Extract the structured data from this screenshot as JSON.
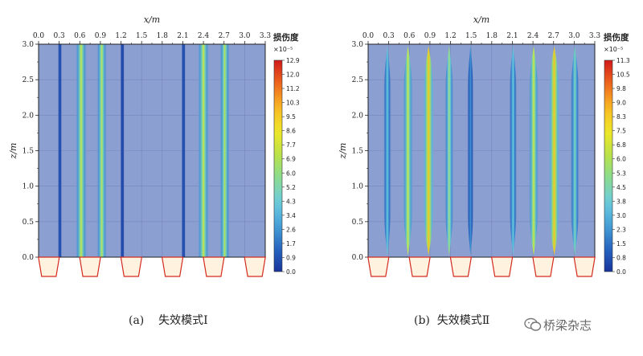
{
  "chart_data": [
    {
      "type": "heatmap",
      "panel_label": "(a)",
      "caption": "失效模式Ⅰ",
      "xlabel": "x/m",
      "ylabel": "z/m",
      "xlim": [
        0.0,
        3.3
      ],
      "ylim": [
        0.0,
        3.0
      ],
      "x_ticks": [
        "0.0",
        "0.3",
        "0.6",
        "0.9",
        "1.2",
        "1.5",
        "1.8",
        "2.1",
        "2.4",
        "2.7",
        "3.0",
        "3.3"
      ],
      "y_ticks": [
        "0.0",
        "0.5",
        "1.0",
        "1.5",
        "2.0",
        "2.5",
        "3.0"
      ],
      "grid": true,
      "colorbar": {
        "title": "损伤度",
        "unit": "×10⁻⁵",
        "min": 0.0,
        "max": 12.9,
        "ticks": [
          "12.9",
          "12.0",
          "11.2",
          "10.3",
          "9.5",
          "8.6",
          "7.7",
          "6.9",
          "6.0",
          "5.2",
          "4.3",
          "3.4",
          "2.6",
          "1.7",
          "0.9",
          "0.0"
        ]
      },
      "background_value": 0.5,
      "bands": [
        {
          "x": 0.31,
          "value": 1.2,
          "width": 0.03,
          "taper": false
        },
        {
          "x": 0.62,
          "value": 7.5,
          "width": 0.09,
          "taper": false
        },
        {
          "x": 0.92,
          "value": 7.2,
          "width": 0.08,
          "taper": false
        },
        {
          "x": 1.22,
          "value": 0.9,
          "width": 0.03,
          "taper": false
        },
        {
          "x": 2.11,
          "value": 1.1,
          "width": 0.03,
          "taper": false
        },
        {
          "x": 2.4,
          "value": 7.6,
          "width": 0.09,
          "taper": false
        },
        {
          "x": 2.71,
          "value": 7.1,
          "width": 0.08,
          "taper": false
        }
      ],
      "supports_x": [
        0.15,
        0.75,
        1.35,
        1.95,
        2.55,
        3.15
      ]
    },
    {
      "type": "heatmap",
      "panel_label": "(b)",
      "caption": "失效模式Ⅱ",
      "xlabel": "x/m",
      "ylabel": "z/m",
      "xlim": [
        0.0,
        3.3
      ],
      "ylim": [
        0.0,
        3.0
      ],
      "x_ticks": [
        "0.0",
        "0.3",
        "0.6",
        "0.9",
        "1.2",
        "1.5",
        "1.8",
        "2.1",
        "2.4",
        "2.7",
        "3.0",
        "3.3"
      ],
      "y_ticks": [
        "0.0",
        "0.5",
        "1.0",
        "1.5",
        "2.0",
        "2.5",
        "3.0"
      ],
      "grid": true,
      "colorbar": {
        "title": "损伤度",
        "unit": "×10⁻⁵",
        "min": 0.0,
        "max": 11.3,
        "ticks": [
          "11.3",
          "10.5",
          "9.8",
          "9.0",
          "8.3",
          "7.5",
          "6.8",
          "6.0",
          "5.3",
          "4.5",
          "3.8",
          "3.0",
          "2.3",
          "1.5",
          "0.8",
          "0.0"
        ]
      },
      "background_value": 0.5,
      "bands": [
        {
          "x": 0.28,
          "value": 3.8,
          "width": 0.06,
          "taper": true
        },
        {
          "x": 0.58,
          "value": 6.8,
          "width": 0.08,
          "taper": true
        },
        {
          "x": 0.88,
          "value": 8.6,
          "width": 0.09,
          "taper": true
        },
        {
          "x": 1.18,
          "value": 5.6,
          "width": 0.07,
          "taper": true
        },
        {
          "x": 1.49,
          "value": 2.3,
          "width": 0.05,
          "taper": true
        },
        {
          "x": 2.11,
          "value": 3.8,
          "width": 0.06,
          "taper": true
        },
        {
          "x": 2.41,
          "value": 6.8,
          "width": 0.08,
          "taper": true
        },
        {
          "x": 2.71,
          "value": 8.6,
          "width": 0.09,
          "taper": true
        },
        {
          "x": 3.01,
          "value": 4.5,
          "width": 0.07,
          "taper": true
        }
      ],
      "supports_x": [
        0.15,
        0.75,
        1.35,
        1.95,
        2.55,
        3.15
      ]
    }
  ],
  "watermark": "桥梁杂志",
  "colors": {
    "background_fill": "#8c9fd1",
    "grid": "#6f80b6",
    "support_fill": "#fff3e0",
    "support_stroke": "#d32a1f",
    "text": "#222222"
  }
}
